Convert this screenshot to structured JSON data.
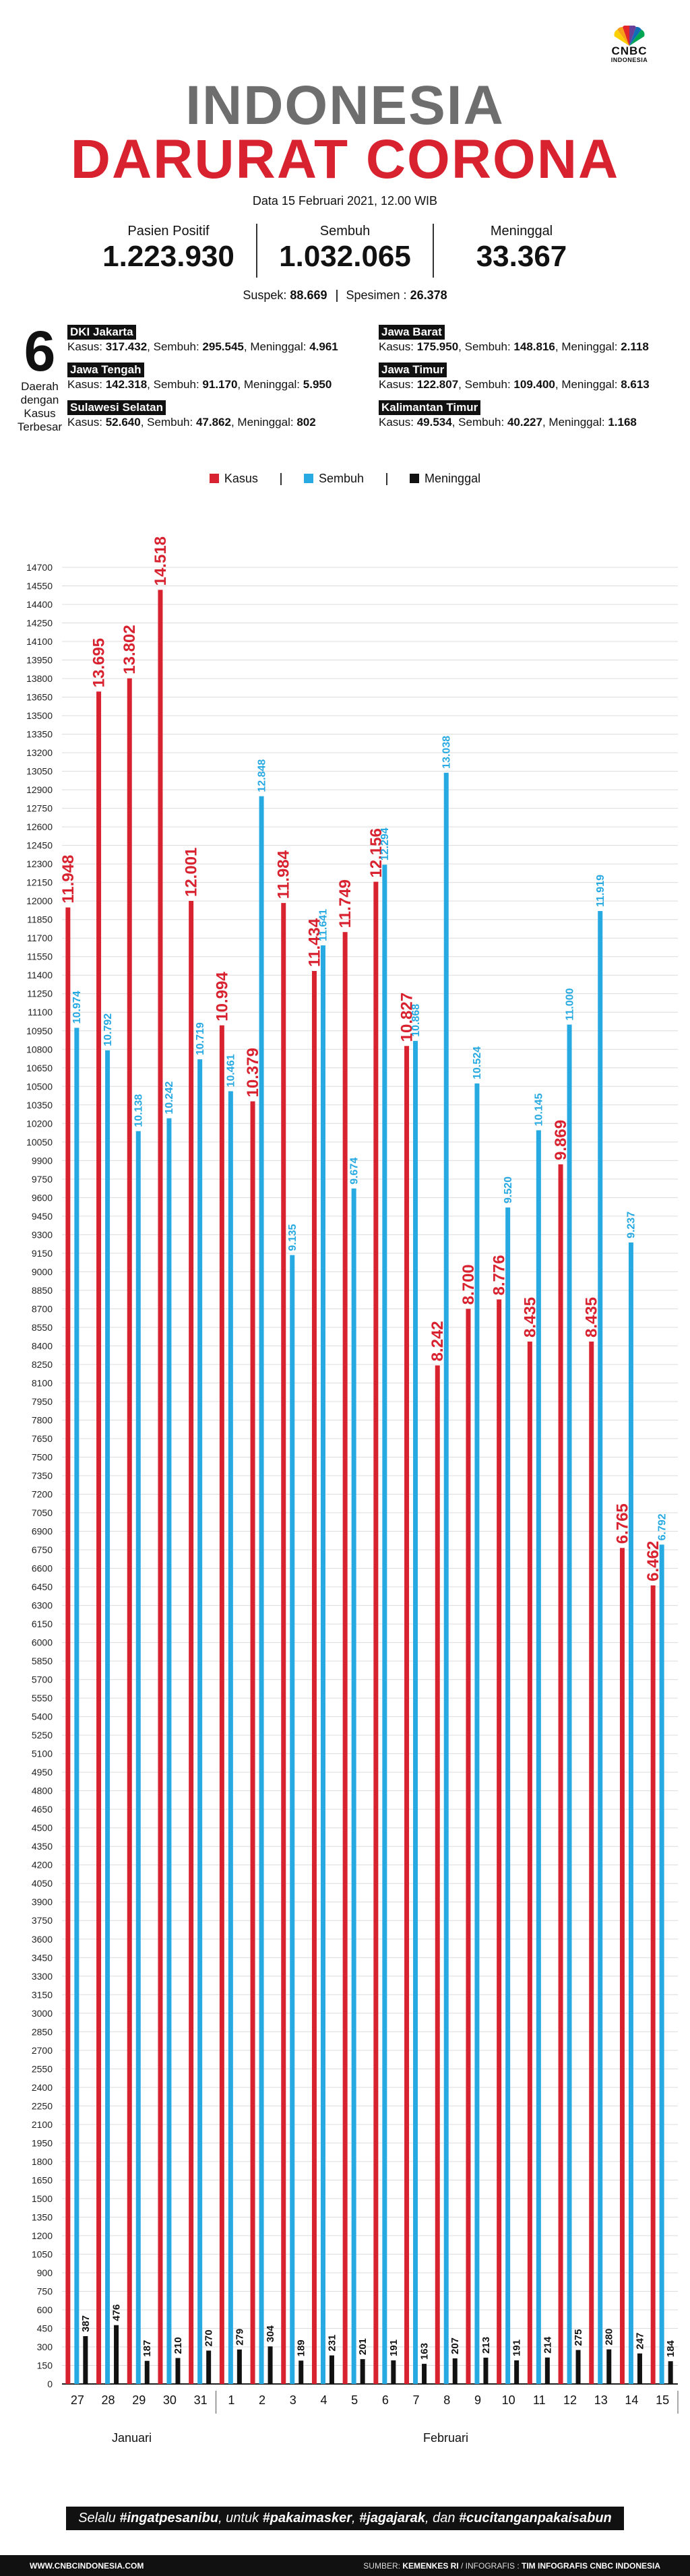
{
  "header": {
    "logo_text": "CNBC",
    "logo_sub": "INDONESIA",
    "title_line1": "INDONESIA",
    "title_line2": "DARURAT CORONA",
    "date": "Data 15 Februari 2021, 12.00 WIB"
  },
  "summary": {
    "positif_label": "Pasien Positif",
    "positif_value": "1.223.930",
    "sembuh_label": "Sembuh",
    "sembuh_value": "1.032.065",
    "meninggal_label": "Meninggal",
    "meninggal_value": "33.367",
    "suspek_label": "Suspek:",
    "suspek_value": "88.669",
    "spesimen_label": "Spesimen :",
    "spesimen_value": "26.378"
  },
  "regions": {
    "count": "6",
    "caption": [
      "Daerah",
      "dengan",
      "Kasus",
      "Terbesar"
    ],
    "kasus_label": "Kasus:",
    "sembuh_label": "Sembuh:",
    "meninggal_label": "Meninggal:",
    "items": [
      {
        "name": "DKI Jakarta",
        "kasus": "317.432",
        "sembuh": "295.545",
        "meninggal": "4.961"
      },
      {
        "name": "Jawa Barat",
        "kasus": "175.950",
        "sembuh": "148.816",
        "meninggal": "2.118"
      },
      {
        "name": "Jawa Tengah",
        "kasus": "142.318",
        "sembuh": "91.170",
        "meninggal": "5.950"
      },
      {
        "name": "Jawa Timur",
        "kasus": "122.807",
        "sembuh": "109.400",
        "meninggal": "8.613"
      },
      {
        "name": "Sulawesi Selatan",
        "kasus": "52.640",
        "sembuh": "47.862",
        "meninggal": "802"
      },
      {
        "name": "Kalimantan Timur",
        "kasus": "49.534",
        "sembuh": "40.227",
        "meninggal": "1.168"
      }
    ]
  },
  "legend": {
    "kasus": "Kasus",
    "sembuh": "Sembuh",
    "meninggal": "Meninggal"
  },
  "colors": {
    "kasus": "#d8222f",
    "sembuh": "#27a9e1",
    "meninggal": "#111111"
  },
  "chart_data": {
    "type": "bar",
    "categories": [
      "27",
      "28",
      "29",
      "30",
      "31",
      "1",
      "2",
      "3",
      "4",
      "5",
      "6",
      "7",
      "8",
      "9",
      "10",
      "11",
      "12",
      "13",
      "14",
      "15"
    ],
    "months": [
      {
        "label": "Januari"
      },
      {
        "label": "Februari"
      }
    ],
    "ylim": [
      0,
      14700
    ],
    "ytick_step": 150,
    "grid": true,
    "legend_position": "top-center",
    "series": [
      {
        "name": "Kasus",
        "values": [
          11948,
          13695,
          13802,
          14518,
          12001,
          10994,
          10379,
          11984,
          11434,
          11749,
          12156,
          10827,
          8242,
          8700,
          8776,
          8435,
          9869,
          8435,
          6765,
          6462
        ],
        "labels": [
          "11.948",
          "13.695",
          "13.802",
          "14.518",
          "12.001",
          "10.994",
          "10.379",
          "11.984",
          "11.434",
          "11.749",
          "12.156",
          "10.827",
          "8.242",
          "8.700",
          "8.776",
          "8.435",
          "9.869",
          "8.435",
          "6.765",
          "6.462"
        ]
      },
      {
        "name": "Sembuh",
        "values": [
          10974,
          10792,
          10138,
          10242,
          10719,
          10461,
          12848,
          9135,
          11641,
          9674,
          12294,
          10868,
          13038,
          10524,
          9520,
          10145,
          11000,
          11919,
          9237,
          6792
        ],
        "labels": [
          "10.974",
          "10.792",
          "10.138",
          "10.242",
          "10.719",
          "10.461",
          "12.848",
          "9.135",
          "11.641",
          "9.674",
          "12.294",
          "10.868",
          "13.038",
          "10.524",
          "9.520",
          "10.145",
          "11.000",
          "11.919",
          "9.237",
          "6.792"
        ]
      },
      {
        "name": "Meninggal",
        "values": [
          387,
          476,
          187,
          210,
          270,
          279,
          304,
          189,
          231,
          201,
          191,
          163,
          207,
          213,
          191,
          214,
          275,
          280,
          247,
          184
        ],
        "labels": [
          "387",
          "476",
          "187",
          "210",
          "270",
          "279",
          "304",
          "189",
          "231",
          "201",
          "191",
          "163",
          "207",
          "213",
          "191",
          "214",
          "275",
          "280",
          "247",
          "184"
        ]
      }
    ]
  },
  "footer": {
    "tagline_pre": "Selalu ",
    "tagline_b1": "#ingatpesanibu",
    "tagline_mid1": ", untuk ",
    "tagline_b2": "#pakaimasker",
    "tagline_mid2": ", ",
    "tagline_b3": "#jagajarak",
    "tagline_mid3": ", dan ",
    "tagline_b4": "#cucitanganpakaisabun",
    "website": "WWW.CNBCINDONESIA.COM",
    "source_label": "SUMBER: ",
    "source_value": "KEMENKES RI",
    "infografis_label": " / INFOGRAFIS : ",
    "infografis_value": "TIM INFOGRAFIS CNBC INDONESIA"
  }
}
